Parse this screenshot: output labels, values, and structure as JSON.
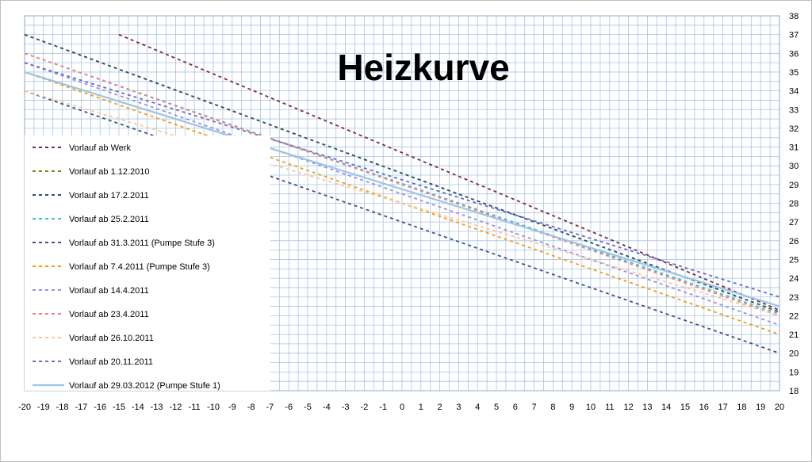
{
  "chart_data": {
    "type": "line",
    "title": "Heizkurve",
    "x": [
      -20,
      -19,
      -18,
      -17,
      -16,
      -15,
      -14,
      -13,
      -12,
      -11,
      -10,
      -9,
      -8,
      -7,
      -6,
      -5,
      -4,
      -3,
      -2,
      -1,
      0,
      1,
      2,
      3,
      4,
      5,
      6,
      7,
      8,
      9,
      10,
      11,
      12,
      13,
      14,
      15,
      16,
      17,
      18,
      19,
      20
    ],
    "xlim": [
      -20,
      20
    ],
    "ylim": [
      18,
      38
    ],
    "yticks": [
      18,
      19,
      20,
      21,
      22,
      23,
      24,
      25,
      26,
      27,
      28,
      29,
      30,
      31,
      32,
      33,
      34,
      35,
      36,
      37,
      38
    ],
    "grid": true,
    "legend_position": "left",
    "series": [
      {
        "name": "Vorlauf ab Werk",
        "x": [
          -15,
          20
        ],
        "y": [
          37.0,
          22.3
        ],
        "color": "#7b2a3b",
        "style": "dashed"
      },
      {
        "name": "Vorlauf ab 1.12.2010",
        "x": [
          -20,
          20
        ],
        "y": [
          37.0,
          22.2
        ],
        "color": "#6b8e23",
        "style": "dashed"
      },
      {
        "name": "Vorlauf ab 17.2.2011",
        "x": [
          -20,
          20
        ],
        "y": [
          37.0,
          22.2
        ],
        "color": "#2f4f6f",
        "style": "dashed"
      },
      {
        "name": "Vorlauf ab 25.2.2011",
        "x": [
          -20,
          20
        ],
        "y": [
          36.0,
          22.1
        ],
        "color": "#40c0c8",
        "style": "dashed"
      },
      {
        "name": "Vorlauf ab 31.3.2011 (Pumpe Stufe 3)",
        "x": [
          -20,
          20
        ],
        "y": [
          34.0,
          20.0
        ],
        "color": "#3f4f8f",
        "style": "dashed"
      },
      {
        "name": "Vorlauf ab 7.4.2011 (Pumpe Stufe 3)",
        "x": [
          -20,
          20
        ],
        "y": [
          35.0,
          21.0
        ],
        "color": "#f39c12",
        "style": "dashed"
      },
      {
        "name": "Vorlauf ab 14.4.2011",
        "x": [
          -20,
          20
        ],
        "y": [
          35.5,
          21.5
        ],
        "color": "#9b8fe0",
        "style": "dashed"
      },
      {
        "name": "Vorlauf ab 23.4.2011",
        "x": [
          -20,
          20
        ],
        "y": [
          36.0,
          22.0
        ],
        "color": "#f08080",
        "style": "dashed"
      },
      {
        "name": "Vorlauf ab 26.10.2011",
        "x": [
          -20,
          20
        ],
        "y": [
          34.0,
          22.0
        ],
        "color": "#f8c89a",
        "style": "dashed"
      },
      {
        "name": "Vorlauf ab 20.11.2011",
        "x": [
          -20,
          20
        ],
        "y": [
          35.5,
          23.0
        ],
        "color": "#6a6ac8",
        "style": "dashed"
      },
      {
        "name": "Vorlauf ab 29.03.2012 (Pumpe Stufe 1)",
        "x": [
          -20,
          20
        ],
        "y": [
          35.0,
          22.5
        ],
        "color": "#9dc3e6",
        "style": "solid"
      }
    ]
  }
}
